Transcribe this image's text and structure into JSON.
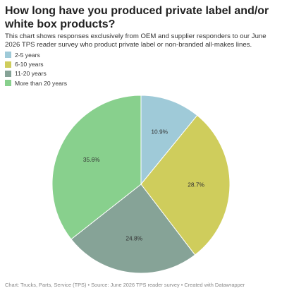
{
  "chart_data": {
    "type": "pie",
    "title": "How long have you produced private label and/or white box products?",
    "subtitle": "This chart shows responses exclusively from OEM and supplier responders to our June 2026 TPS reader survey who product private label or non-branded all-makes lines.",
    "categories": [
      "2-5 years",
      "6-10 years",
      "11-20 years",
      "More than 20 years"
    ],
    "values": [
      10.9,
      28.7,
      24.8,
      35.6
    ],
    "value_labels": [
      "10.9%",
      "28.7%",
      "24.8%",
      "35.6%"
    ],
    "colors": [
      "#9fcad8",
      "#cfcd5c",
      "#86a397",
      "#88d08d"
    ],
    "footer": "Chart: Trucks, Parts, Service (TPS) • Source: June 2026 TPS reader survey • Created with Datawrapper"
  }
}
